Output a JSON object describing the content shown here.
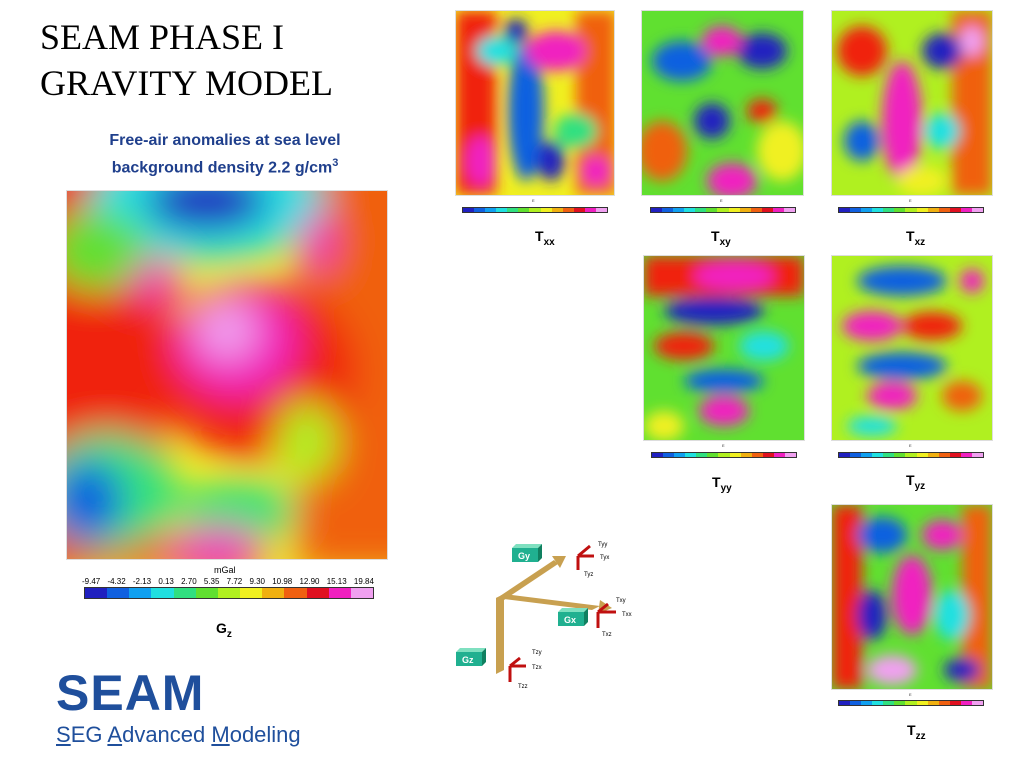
{
  "title_lines": [
    "SEAM PHASE I",
    "GRAVITY MODEL"
  ],
  "subtitle_line1": "Free-air anomalies at sea level",
  "subtitle_line2": "background density 2.2 g/cm",
  "subtitle_sup": "3",
  "gz": {
    "unit": "mGal",
    "ticks": [
      "-9.47",
      "-4.32",
      "-2.13",
      "0.13",
      "2.70",
      "5.35",
      "7.72",
      "9.30",
      "10.98",
      "12.90",
      "15.13",
      "19.84"
    ],
    "label_main": "G",
    "label_sub": "z"
  },
  "tensor_labels": {
    "txx": {
      "main": "T",
      "sub": "xx"
    },
    "txy": {
      "main": "T",
      "sub": "xy"
    },
    "txz": {
      "main": "T",
      "sub": "xz"
    },
    "tyy": {
      "main": "T",
      "sub": "yy"
    },
    "tyz": {
      "main": "T",
      "sub": "yz"
    },
    "tzz": {
      "main": "T",
      "sub": "zz"
    }
  },
  "mini_unit": "E",
  "colors": [
    "#2020c0",
    "#1060e0",
    "#10a0f0",
    "#20e0e0",
    "#30e080",
    "#60e030",
    "#b0f020",
    "#f0f020",
    "#f0b010",
    "#f06010",
    "#e01020",
    "#f020c0",
    "#f0a0f0"
  ],
  "axes_diagram": {
    "gy": "Gy",
    "gx": "Gx",
    "gz": "Gz",
    "tyy": "Tyy",
    "tyx": "Tyx",
    "tyz": "Tyz",
    "txy": "Txy",
    "txx": "Txx",
    "txz": "Txz",
    "tzy": "Tzy",
    "tzx": "Tzx",
    "tzz": "Tzz"
  },
  "logo": {
    "name": "SEAM",
    "sub_s": "S",
    "sub_e": "E",
    "sub_g": "G ",
    "sub_a": "A",
    "sub_dv": "dvanced ",
    "sub_m": "M",
    "sub_rest": "odeling"
  }
}
